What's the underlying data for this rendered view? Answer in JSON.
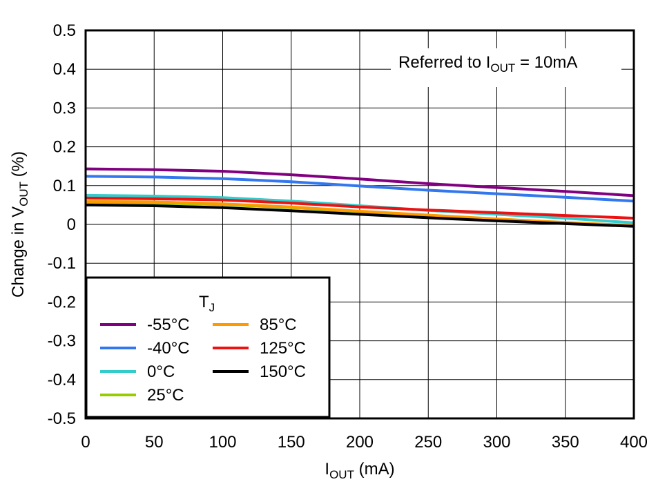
{
  "chart_data": {
    "type": "line",
    "annotation": {
      "prefix": "Referred to I",
      "sub": "OUT",
      "suffix": " = 10mA"
    },
    "xlabel": {
      "main": "I",
      "sub": "OUT",
      "suffix": " (mA)"
    },
    "ylabel": {
      "prefix": "Change in V",
      "sub": "OUT",
      "suffix": " (%)"
    },
    "xlim": [
      0,
      400
    ],
    "ylim": [
      -0.5,
      0.5
    ],
    "xticks": [
      0,
      50,
      100,
      150,
      200,
      250,
      300,
      350,
      400
    ],
    "xtick_labels": [
      "0",
      "50",
      "100",
      "150",
      "200",
      "250",
      "300",
      "350",
      "400"
    ],
    "yticks": [
      -0.5,
      -0.4,
      -0.3,
      -0.2,
      -0.1,
      0,
      0.1,
      0.2,
      0.3,
      0.4,
      0.5
    ],
    "ytick_labels": [
      "-0.5",
      "-0.4",
      "-0.3",
      "-0.2",
      "-0.1",
      "0",
      "0.1",
      "0.2",
      "0.3",
      "0.4",
      "0.5"
    ],
    "grid": true,
    "legend": {
      "title_main": "T",
      "title_sub": "J",
      "placement": "bottom-left"
    },
    "x": [
      0,
      50,
      100,
      150,
      200,
      250,
      300,
      350,
      400
    ],
    "series": [
      {
        "name": "-55°C",
        "color": "#800080",
        "values": [
          0.143,
          0.141,
          0.137,
          0.128,
          0.117,
          0.105,
          0.095,
          0.085,
          0.074
        ]
      },
      {
        "name": "-40°C",
        "color": "#3377ee",
        "values": [
          0.124,
          0.122,
          0.118,
          0.11,
          0.099,
          0.088,
          0.079,
          0.07,
          0.06
        ]
      },
      {
        "name": "0°C",
        "color": "#33cccc",
        "values": [
          0.075,
          0.073,
          0.069,
          0.06,
          0.048,
          0.036,
          0.026,
          0.016,
          0.004
        ]
      },
      {
        "name": "25°C",
        "color": "#99cc00",
        "values": [
          0.056,
          0.055,
          0.051,
          0.043,
          0.033,
          0.022,
          0.012,
          0.004,
          -0.004
        ]
      },
      {
        "name": "85°C",
        "color": "#ff9900",
        "values": [
          0.059,
          0.058,
          0.053,
          0.045,
          0.034,
          0.024,
          0.014,
          0.005,
          -0.003
        ]
      },
      {
        "name": "125°C",
        "color": "#ee1111",
        "values": [
          0.068,
          0.066,
          0.063,
          0.055,
          0.045,
          0.037,
          0.03,
          0.023,
          0.016
        ]
      },
      {
        "name": "150°C",
        "color": "#000000",
        "values": [
          0.05,
          0.048,
          0.043,
          0.035,
          0.026,
          0.017,
          0.009,
          0.002,
          -0.005
        ]
      }
    ]
  }
}
